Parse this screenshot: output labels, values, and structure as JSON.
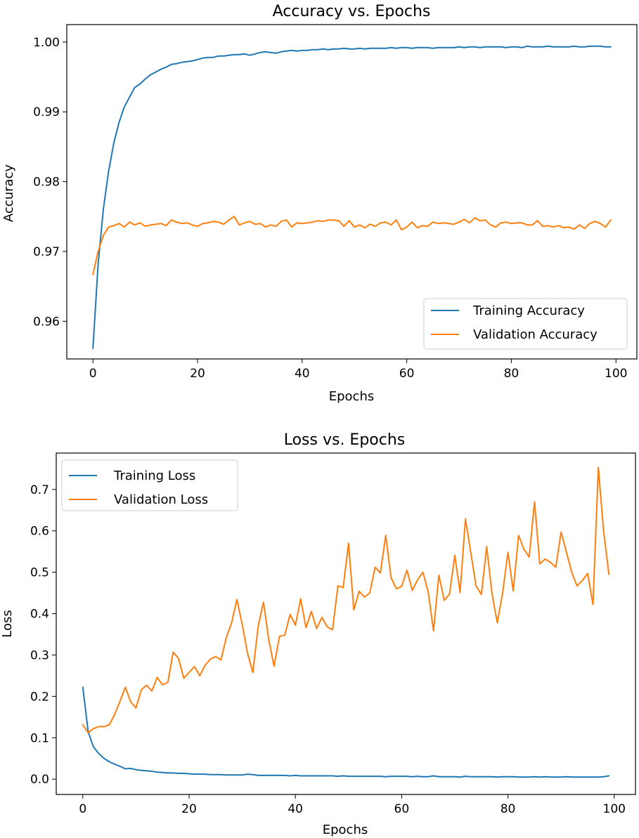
{
  "chart_data": [
    {
      "type": "line",
      "title": "Accuracy vs. Epochs",
      "xlabel": "Epochs",
      "ylabel": "Accuracy",
      "xlim": [
        -5,
        104
      ],
      "ylim": [
        0.9546,
        1.0025
      ],
      "xticks": [
        0,
        20,
        40,
        60,
        80,
        100
      ],
      "yticks": [
        0.96,
        0.97,
        0.98,
        0.99,
        1.0
      ],
      "ytick_labels": [
        "0.96",
        "0.97",
        "0.98",
        "0.99",
        "1.00"
      ],
      "grid": false,
      "legend_position": "lower right",
      "x": [
        0,
        1,
        2,
        3,
        4,
        5,
        6,
        7,
        8,
        9,
        10,
        11,
        12,
        13,
        14,
        15,
        16,
        17,
        18,
        19,
        20,
        21,
        22,
        23,
        24,
        25,
        26,
        27,
        28,
        29,
        30,
        31,
        32,
        33,
        34,
        35,
        36,
        37,
        38,
        39,
        40,
        41,
        42,
        43,
        44,
        45,
        46,
        47,
        48,
        49,
        50,
        51,
        52,
        53,
        54,
        55,
        56,
        57,
        58,
        59,
        60,
        61,
        62,
        63,
        64,
        65,
        66,
        67,
        68,
        69,
        70,
        71,
        72,
        73,
        74,
        75,
        76,
        77,
        78,
        79,
        80,
        81,
        82,
        83,
        84,
        85,
        86,
        87,
        88,
        89,
        90,
        91,
        92,
        93,
        94,
        95,
        96,
        97,
        98,
        99
      ],
      "series": [
        {
          "name": "Training Accuracy",
          "color": "#1f77b4",
          "values": [
            0.9561,
            0.9682,
            0.9761,
            0.9815,
            0.9856,
            0.9885,
            0.9907,
            0.9921,
            0.9935,
            0.994,
            0.9947,
            0.9953,
            0.9957,
            0.9961,
            0.9964,
            0.9968,
            0.9969,
            0.9971,
            0.9972,
            0.9973,
            0.9975,
            0.9977,
            0.9978,
            0.9978,
            0.998,
            0.998,
            0.9981,
            0.9982,
            0.9982,
            0.9983,
            0.9981,
            0.9983,
            0.9985,
            0.9986,
            0.9985,
            0.9984,
            0.9986,
            0.9987,
            0.9988,
            0.9987,
            0.9988,
            0.9988,
            0.9989,
            0.9989,
            0.999,
            0.9989,
            0.999,
            0.999,
            0.9991,
            0.999,
            0.999,
            0.9991,
            0.999,
            0.9991,
            0.9991,
            0.9991,
            0.9991,
            0.9992,
            0.9991,
            0.9992,
            0.9992,
            0.9991,
            0.9992,
            0.9992,
            0.9992,
            0.9991,
            0.9992,
            0.9992,
            0.9992,
            0.9992,
            0.9993,
            0.9992,
            0.9993,
            0.9993,
            0.9992,
            0.9993,
            0.9993,
            0.9993,
            0.9993,
            0.9992,
            0.9993,
            0.9993,
            0.9992,
            0.9994,
            0.9993,
            0.9993,
            0.9993,
            0.9994,
            0.9993,
            0.9993,
            0.9993,
            0.9993,
            0.9994,
            0.9993,
            0.9993,
            0.9994,
            0.9994,
            0.9994,
            0.9993,
            0.9993
          ]
        },
        {
          "name": "Validation Accuracy",
          "color": "#ff7f0e",
          "values": [
            0.9667,
            0.97,
            0.9723,
            0.9735,
            0.9737,
            0.974,
            0.9735,
            0.9742,
            0.9738,
            0.9741,
            0.9736,
            0.9738,
            0.9739,
            0.974,
            0.9737,
            0.9745,
            0.9742,
            0.974,
            0.9741,
            0.9738,
            0.9736,
            0.974,
            0.9741,
            0.9743,
            0.9742,
            0.9739,
            0.9745,
            0.975,
            0.9738,
            0.9741,
            0.9743,
            0.9739,
            0.974,
            0.9735,
            0.9738,
            0.9736,
            0.9743,
            0.9745,
            0.9735,
            0.9741,
            0.974,
            0.9741,
            0.9742,
            0.9744,
            0.9743,
            0.9745,
            0.9745,
            0.9744,
            0.9736,
            0.9744,
            0.9735,
            0.9738,
            0.9734,
            0.9739,
            0.9736,
            0.9741,
            0.9742,
            0.9738,
            0.9745,
            0.9731,
            0.9735,
            0.9742,
            0.9734,
            0.9737,
            0.9736,
            0.9742,
            0.974,
            0.9741,
            0.974,
            0.9739,
            0.9742,
            0.9746,
            0.9741,
            0.9748,
            0.9744,
            0.9745,
            0.9738,
            0.9735,
            0.9741,
            0.9742,
            0.974,
            0.9741,
            0.9741,
            0.9738,
            0.9738,
            0.9744,
            0.9736,
            0.9737,
            0.9735,
            0.9737,
            0.9734,
            0.9735,
            0.9732,
            0.9738,
            0.9733,
            0.974,
            0.9743,
            0.974,
            0.9735,
            0.9745
          ]
        }
      ]
    },
    {
      "type": "line",
      "title": "Loss vs. Epochs",
      "xlabel": "Epochs",
      "ylabel": "Loss",
      "xlim": [
        -5,
        104
      ],
      "ylim": [
        -0.037,
        0.788
      ],
      "xticks": [
        0,
        20,
        40,
        60,
        80,
        100
      ],
      "yticks": [
        0.0,
        0.1,
        0.2,
        0.3,
        0.4,
        0.5,
        0.6,
        0.7
      ],
      "ytick_labels": [
        "0.0",
        "0.1",
        "0.2",
        "0.3",
        "0.4",
        "0.5",
        "0.6",
        "0.7"
      ],
      "grid": false,
      "legend_position": "upper left",
      "x": [
        0,
        1,
        2,
        3,
        4,
        5,
        6,
        7,
        8,
        9,
        10,
        11,
        12,
        13,
        14,
        15,
        16,
        17,
        18,
        19,
        20,
        21,
        22,
        23,
        24,
        25,
        26,
        27,
        28,
        29,
        30,
        31,
        32,
        33,
        34,
        35,
        36,
        37,
        38,
        39,
        40,
        41,
        42,
        43,
        44,
        45,
        46,
        47,
        48,
        49,
        50,
        51,
        52,
        53,
        54,
        55,
        56,
        57,
        58,
        59,
        60,
        61,
        62,
        63,
        64,
        65,
        66,
        67,
        68,
        69,
        70,
        71,
        72,
        73,
        74,
        75,
        76,
        77,
        78,
        79,
        80,
        81,
        82,
        83,
        84,
        85,
        86,
        87,
        88,
        89,
        90,
        91,
        92,
        93,
        94,
        95,
        96,
        97,
        98,
        99
      ],
      "series": [
        {
          "name": "Training Loss",
          "color": "#1f77b4",
          "values": [
            0.222,
            0.115,
            0.078,
            0.062,
            0.05,
            0.042,
            0.036,
            0.031,
            0.025,
            0.026,
            0.023,
            0.021,
            0.02,
            0.019,
            0.017,
            0.016,
            0.015,
            0.015,
            0.014,
            0.014,
            0.013,
            0.012,
            0.012,
            0.012,
            0.011,
            0.011,
            0.011,
            0.01,
            0.01,
            0.01,
            0.01,
            0.012,
            0.011,
            0.009,
            0.009,
            0.009,
            0.009,
            0.009,
            0.009,
            0.008,
            0.009,
            0.008,
            0.008,
            0.008,
            0.008,
            0.008,
            0.008,
            0.008,
            0.007,
            0.008,
            0.007,
            0.007,
            0.007,
            0.007,
            0.007,
            0.007,
            0.007,
            0.006,
            0.007,
            0.007,
            0.007,
            0.007,
            0.006,
            0.007,
            0.006,
            0.006,
            0.008,
            0.006,
            0.006,
            0.006,
            0.006,
            0.005,
            0.007,
            0.006,
            0.006,
            0.006,
            0.006,
            0.006,
            0.005,
            0.006,
            0.006,
            0.006,
            0.005,
            0.005,
            0.005,
            0.006,
            0.005,
            0.006,
            0.005,
            0.005,
            0.005,
            0.006,
            0.005,
            0.005,
            0.005,
            0.005,
            0.005,
            0.005,
            0.006,
            0.008
          ]
        },
        {
          "name": "Validation Loss",
          "color": "#ff7f0e",
          "values": [
            0.131,
            0.112,
            0.122,
            0.127,
            0.127,
            0.131,
            0.157,
            0.188,
            0.222,
            0.187,
            0.172,
            0.216,
            0.227,
            0.213,
            0.246,
            0.228,
            0.234,
            0.307,
            0.292,
            0.244,
            0.258,
            0.272,
            0.25,
            0.275,
            0.29,
            0.296,
            0.288,
            0.342,
            0.378,
            0.434,
            0.374,
            0.304,
            0.258,
            0.37,
            0.428,
            0.336,
            0.273,
            0.345,
            0.348,
            0.398,
            0.372,
            0.436,
            0.366,
            0.405,
            0.364,
            0.391,
            0.368,
            0.361,
            0.467,
            0.463,
            0.57,
            0.409,
            0.454,
            0.44,
            0.45,
            0.512,
            0.498,
            0.589,
            0.487,
            0.46,
            0.466,
            0.505,
            0.456,
            0.482,
            0.5,
            0.452,
            0.358,
            0.493,
            0.432,
            0.447,
            0.541,
            0.451,
            0.629,
            0.548,
            0.467,
            0.446,
            0.562,
            0.448,
            0.378,
            0.45,
            0.548,
            0.455,
            0.589,
            0.556,
            0.537,
            0.67,
            0.52,
            0.532,
            0.524,
            0.512,
            0.597,
            0.549,
            0.5,
            0.467,
            0.48,
            0.497,
            0.422,
            0.753,
            0.6,
            0.495
          ]
        }
      ]
    }
  ]
}
